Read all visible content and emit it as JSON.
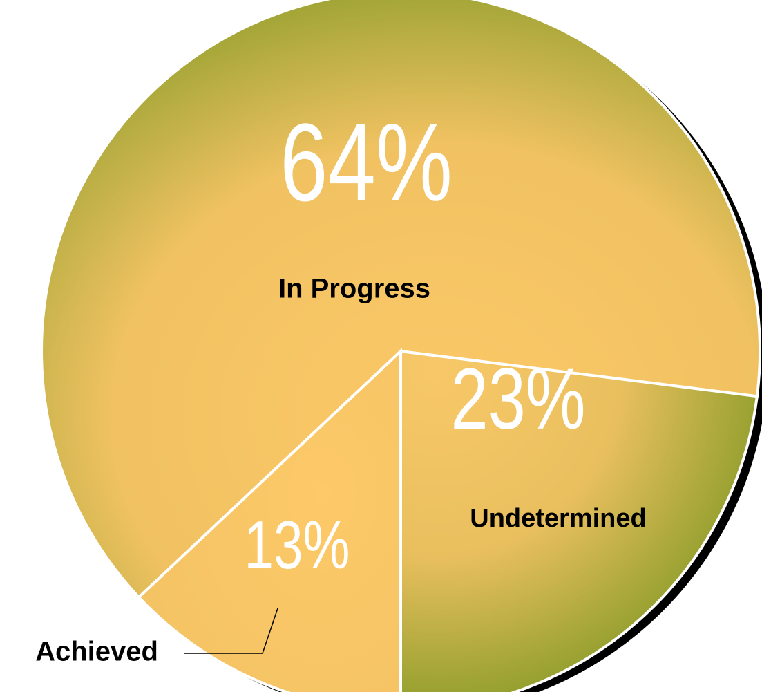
{
  "chart_data": {
    "type": "pie",
    "categories": [
      "Undetermined",
      "In Progress",
      "Achieved"
    ],
    "values": [
      23,
      64,
      13
    ],
    "value_labels": [
      "23%",
      "64%",
      "13%"
    ]
  }
}
